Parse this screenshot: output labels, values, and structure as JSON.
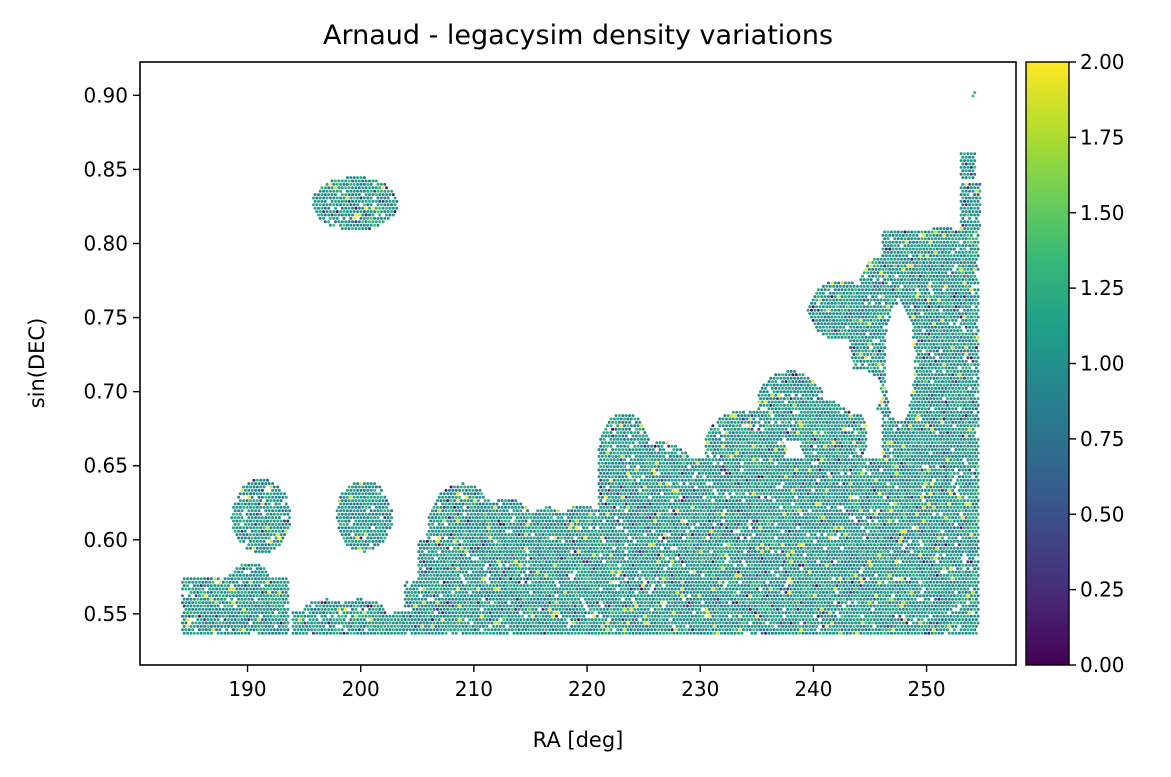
{
  "chart_data": {
    "type": "scatter",
    "title": "Arnaud - legacysim density variations",
    "xlabel": "RA [deg]",
    "ylabel": "sin(DEC)",
    "xlim": [
      180.5,
      257.9
    ],
    "ylim": [
      0.5155,
      0.9225
    ],
    "xticks": [
      190,
      200,
      210,
      220,
      230,
      240,
      250
    ],
    "xtick_labels": [
      "190",
      "200",
      "210",
      "220",
      "230",
      "240",
      "250"
    ],
    "yticks": [
      0.55,
      0.6,
      0.65,
      0.7,
      0.75,
      0.8,
      0.85,
      0.9
    ],
    "ytick_labels": [
      "0.55",
      "0.60",
      "0.65",
      "0.70",
      "0.75",
      "0.80",
      "0.85",
      "0.90"
    ],
    "grid": false,
    "colormap": "viridis",
    "colorbar": {
      "min": 0.0,
      "max": 2.0,
      "ticks": [
        0.0,
        0.25,
        0.5,
        0.75,
        1.0,
        1.25,
        1.5,
        1.75,
        2.0
      ],
      "tick_labels": [
        "0.00",
        "0.25",
        "0.50",
        "0.75",
        "1.00",
        "1.25",
        "1.50",
        "1.75",
        "2.00"
      ]
    },
    "viridis_stops": [
      "#440154",
      "#482878",
      "#3e4989",
      "#31688e",
      "#26828e",
      "#1f9e89",
      "#35b779",
      "#6ece58",
      "#b5de2b",
      "#fde725"
    ],
    "footprint_regions": [
      {
        "shape": "ellipse",
        "ra": 199.5,
        "sindec": 0.827,
        "ra_radius": 3.8,
        "sindec_radius": 0.018
      },
      {
        "shape": "ellipse",
        "ra": 191.2,
        "sindec": 0.616,
        "ra_radius": 2.6,
        "sindec_radius": 0.025
      },
      {
        "shape": "ellipse",
        "ra": 200.3,
        "sindec": 0.616,
        "ra_radius": 2.5,
        "sindec_radius": 0.024
      },
      {
        "shape": "rect",
        "ra_min": 184.2,
        "ra_max": 193.6,
        "sindec_min": 0.536,
        "sindec_max": 0.574
      },
      {
        "shape": "ellipse",
        "ra": 190.2,
        "sindec": 0.565,
        "ra_radius": 2.1,
        "sindec_radius": 0.02
      },
      {
        "shape": "rect",
        "ra_min": 194.0,
        "ra_max": 206.0,
        "sindec_min": 0.536,
        "sindec_max": 0.552
      },
      {
        "shape": "ellipse",
        "ra": 200.0,
        "sindec": 0.552,
        "ra_radius": 2.1,
        "sindec_radius": 0.008
      },
      {
        "shape": "ellipse",
        "ra": 197.0,
        "sindec": 0.552,
        "ra_radius": 2.0,
        "sindec_radius": 0.008
      },
      {
        "shape": "rect",
        "ra_min": 203.8,
        "ra_max": 206.2,
        "sindec_min": 0.536,
        "sindec_max": 0.572
      },
      {
        "shape": "rect",
        "ra_min": 205.0,
        "ra_max": 254.6,
        "sindec_min": 0.535,
        "sindec_max": 0.6
      },
      {
        "shape": "ellipse",
        "ra": 209.0,
        "sindec": 0.605,
        "ra_radius": 3.2,
        "sindec_radius": 0.033
      },
      {
        "shape": "ellipse",
        "ra": 213.0,
        "sindec": 0.598,
        "ra_radius": 2.8,
        "sindec_radius": 0.03
      },
      {
        "shape": "ellipse",
        "ra": 216.5,
        "sindec": 0.596,
        "ra_radius": 2.6,
        "sindec_radius": 0.026
      },
      {
        "shape": "ellipse",
        "ra": 219.5,
        "sindec": 0.598,
        "ra_radius": 2.4,
        "sindec_radius": 0.026
      },
      {
        "shape": "ellipse",
        "ra": 223.3,
        "sindec": 0.657,
        "ra_radius": 2.3,
        "sindec_radius": 0.029
      },
      {
        "shape": "rect",
        "ra_min": 221.0,
        "ra_max": 254.6,
        "sindec_min": 0.58,
        "sindec_max": 0.655
      },
      {
        "shape": "ellipse",
        "ra": 226.7,
        "sindec": 0.648,
        "ra_radius": 2.6,
        "sindec_radius": 0.018
      },
      {
        "shape": "ellipse",
        "ra": 234.0,
        "sindec": 0.662,
        "ra_radius": 3.6,
        "sindec_radius": 0.026
      },
      {
        "shape": "ellipse",
        "ra": 238.0,
        "sindec": 0.69,
        "ra_radius": 3.0,
        "sindec_radius": 0.024
      },
      {
        "shape": "ellipse",
        "ra": 241.8,
        "sindec": 0.67,
        "ra_radius": 3.0,
        "sindec_radius": 0.024
      },
      {
        "shape": "rect",
        "ra_min": 246.0,
        "ra_max": 254.6,
        "sindec_min": 0.64,
        "sindec_max": 0.81
      },
      {
        "shape": "ellipse",
        "ra": 242.5,
        "sindec": 0.755,
        "ra_radius": 3.0,
        "sindec_radius": 0.02
      },
      {
        "shape": "ellipse",
        "ra": 246.0,
        "sindec": 0.74,
        "ra_radius": 2.8,
        "sindec_radius": 0.052
      },
      {
        "shape": "ellipse",
        "ra": 248.5,
        "sindec": 0.775,
        "ra_radius": 3.2,
        "sindec_radius": 0.02
      },
      {
        "shape": "ellipse",
        "ra": 251.4,
        "sindec": 0.785,
        "ra_radius": 3.0,
        "sindec_radius": 0.026
      },
      {
        "shape": "rect",
        "ra_min": 253.0,
        "ra_max": 254.8,
        "sindec_min": 0.81,
        "sindec_max": 0.84
      },
      {
        "shape": "rect",
        "ra_min": 253.0,
        "ra_max": 254.4,
        "sindec_min": 0.843,
        "sindec_max": 0.862
      },
      {
        "shape": "rect",
        "ra_min": 254.0,
        "ra_max": 254.3,
        "sindec_min": 0.898,
        "sindec_max": 0.904
      }
    ],
    "footprint_holes": [
      {
        "ra": 247.6,
        "sindec": 0.72,
        "ra_radius": 1.3,
        "sindec_radius": 0.04
      },
      {
        "ra": 244.0,
        "sindec": 0.7,
        "ra_radius": 2.0,
        "sindec_radius": 0.015
      }
    ]
  }
}
